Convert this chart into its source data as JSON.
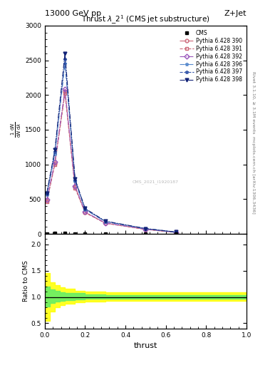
{
  "title_top": "13000 GeV pp",
  "title_right": "Z+Jet",
  "plot_title": "Thrust $\\lambda\\_2^1$ (CMS jet substructure)",
  "xlabel": "thrust",
  "ylabel_ratio": "Ratio to CMS",
  "right_label_top": "Rivet 3.1.10, ≥ 3.1M events",
  "right_label_bot": "mcplots.cern.ch [arXiv:1306.3436]",
  "watermark": "CMS_2021_I1920187",
  "ylim_main": [
    0,
    3000
  ],
  "ylim_ratio": [
    0.4,
    2.2
  ],
  "xlim": [
    0.0,
    1.0
  ],
  "x_pts": [
    0.01,
    0.05,
    0.1,
    0.15,
    0.2,
    0.3,
    0.5,
    0.65
  ],
  "cms_y": [
    5,
    8,
    7,
    5,
    4,
    3,
    2,
    2
  ],
  "line_configs": [
    {
      "label": "Pythia 6.428 390",
      "color": "#cc6677",
      "ls": "-.",
      "marker": "o",
      "mfc": "none",
      "y": [
        480,
        1020,
        2050,
        680,
        310,
        155,
        65,
        22
      ]
    },
    {
      "label": "Pythia 6.428 391",
      "color": "#cc6677",
      "ls": "--",
      "marker": "s",
      "mfc": "none",
      "y": [
        460,
        1000,
        2020,
        660,
        305,
        152,
        63,
        21
      ]
    },
    {
      "label": "Pythia 6.428 392",
      "color": "#9955bb",
      "ls": "-.",
      "marker": "D",
      "mfc": "none",
      "y": [
        490,
        1040,
        2080,
        690,
        315,
        158,
        66,
        22
      ]
    },
    {
      "label": "Pythia 6.428 396",
      "color": "#5588cc",
      "ls": "-.",
      "marker": "*",
      "mfc": "none",
      "y": [
        560,
        1150,
        2450,
        760,
        350,
        175,
        73,
        25
      ]
    },
    {
      "label": "Pythia 6.428 397",
      "color": "#3355aa",
      "ls": "--",
      "marker": "*",
      "mfc": "none",
      "y": [
        575,
        1180,
        2520,
        775,
        358,
        179,
        75,
        25
      ]
    },
    {
      "label": "Pythia 6.428 398",
      "color": "#112277",
      "ls": "-.",
      "marker": "v",
      "mfc": "#112277",
      "y": [
        590,
        1210,
        2600,
        790,
        365,
        183,
        77,
        26
      ]
    }
  ],
  "ratio_x": [
    0.0,
    0.025,
    0.05,
    0.075,
    0.1,
    0.15,
    0.2,
    0.3,
    0.5,
    0.7,
    1.0
  ],
  "yellow_lo": [
    0.55,
    0.72,
    0.8,
    0.84,
    0.87,
    0.9,
    0.91,
    0.92,
    0.92,
    0.92,
    0.92
  ],
  "yellow_hi": [
    1.45,
    1.28,
    1.22,
    1.18,
    1.15,
    1.12,
    1.1,
    1.09,
    1.09,
    1.09,
    1.09
  ],
  "green_lo": [
    0.82,
    0.88,
    0.91,
    0.93,
    0.94,
    0.95,
    0.96,
    0.97,
    0.97,
    0.97,
    0.97
  ],
  "green_hi": [
    1.2,
    1.14,
    1.11,
    1.09,
    1.08,
    1.07,
    1.05,
    1.04,
    1.04,
    1.04,
    1.04
  ],
  "ratio_yticks": [
    0.5,
    1.0,
    1.5,
    2.0
  ],
  "main_yticks": [
    0,
    500,
    1000,
    1500,
    2000,
    2500,
    3000
  ]
}
